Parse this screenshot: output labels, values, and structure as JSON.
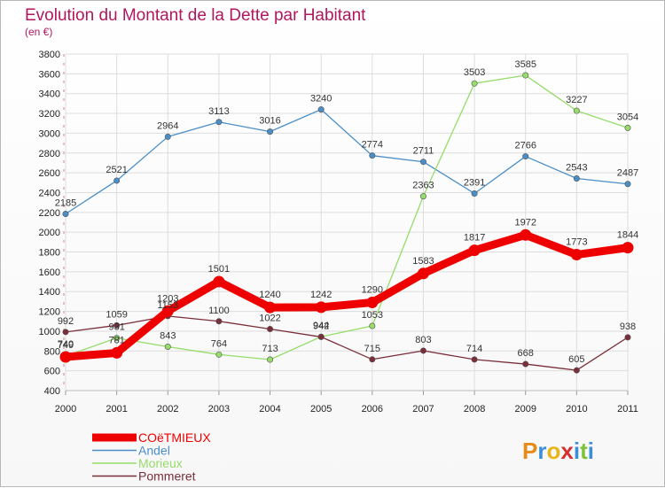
{
  "chart_data": {
    "type": "line",
    "title": "Evolution du Montant de la Dette par Habitant",
    "subtitle": "(en €)",
    "xlabel": "",
    "ylabel": "",
    "categories": [
      "2000",
      "2001",
      "2002",
      "2003",
      "2004",
      "2005",
      "2006",
      "2007",
      "2008",
      "2009",
      "2010",
      "2011"
    ],
    "ylim": [
      400,
      3800
    ],
    "yticks": [
      400,
      600,
      800,
      1000,
      1200,
      1400,
      1600,
      1800,
      2000,
      2200,
      2400,
      2600,
      2800,
      3000,
      3200,
      3400,
      3600,
      3800
    ],
    "grid": true,
    "legend": "bottom-left",
    "series": [
      {
        "name": "COëTMIEUX",
        "color": "#ee0000",
        "values": [
          740,
          781,
          1203,
          1501,
          1240,
          1242,
          1290,
          1583,
          1817,
          1972,
          1773,
          1844
        ]
      },
      {
        "name": "Andel",
        "color": "#4a8ec7",
        "values": [
          2185,
          2521,
          2964,
          3113,
          3016,
          3240,
          2774,
          2711,
          2391,
          2766,
          2543,
          2487
        ]
      },
      {
        "name": "Morieux",
        "color": "#96dc6a",
        "values": [
          749,
          931,
          843,
          764,
          713,
          944,
          1053,
          2363,
          3503,
          3585,
          3227,
          3054
        ]
      },
      {
        "name": "Pommeret",
        "color": "#7a2e3a",
        "values": [
          992,
          1059,
          1153,
          1100,
          1022,
          942,
          715,
          803,
          714,
          668,
          605,
          938
        ]
      }
    ]
  },
  "logo": {
    "text": "Proxiti",
    "letters": [
      "P",
      "r",
      "o",
      "x",
      "i",
      "t",
      "i"
    ]
  }
}
